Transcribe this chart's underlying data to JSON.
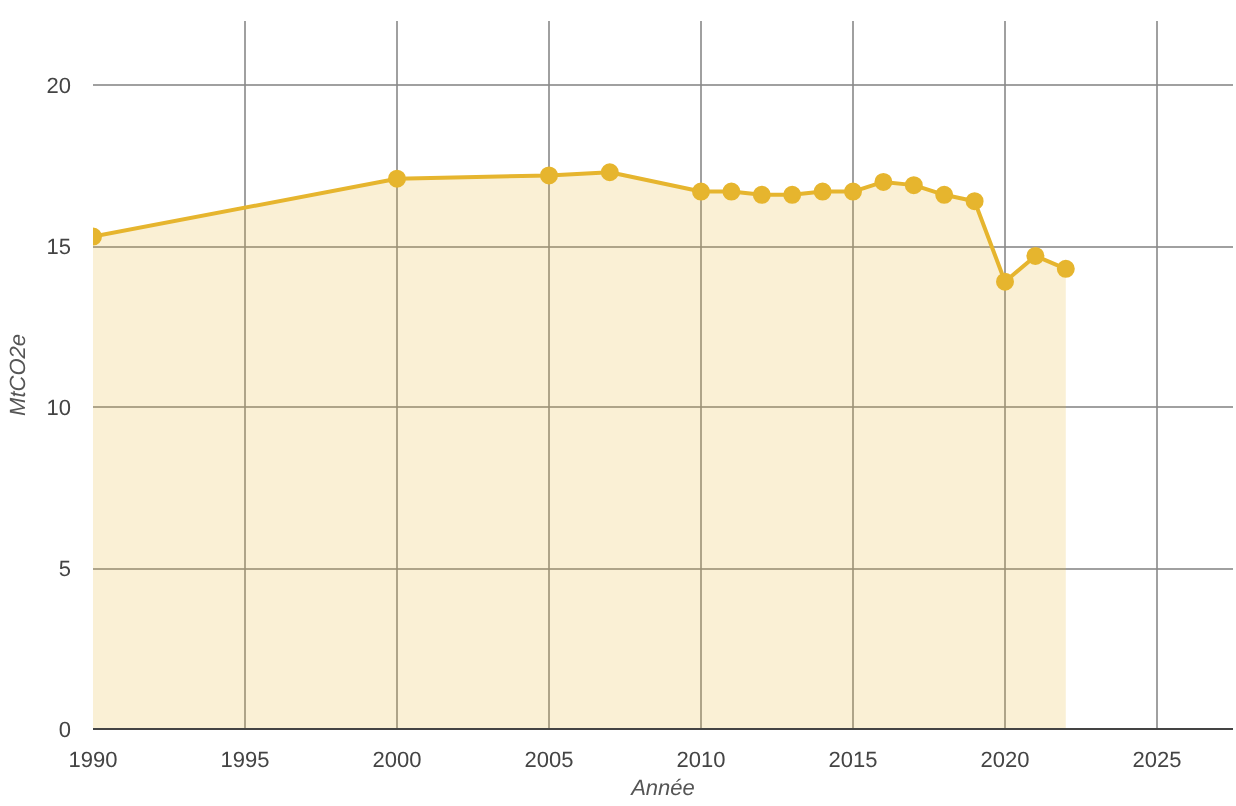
{
  "chart_data": {
    "type": "area",
    "xlabel": "Année",
    "ylabel": "MtCO2e",
    "x": [
      1990,
      2000,
      2005,
      2007,
      2010,
      2011,
      2012,
      2013,
      2014,
      2015,
      2016,
      2017,
      2018,
      2019,
      2020,
      2021,
      2022
    ],
    "series": [
      {
        "color": "#e6b52e",
        "values": [
          15.3,
          17.1,
          17.2,
          17.3,
          16.7,
          16.7,
          16.6,
          16.6,
          16.7,
          16.7,
          17.0,
          16.9,
          16.6,
          16.4,
          13.9,
          14.7,
          14.3
        ]
      }
    ],
    "xlim": [
      1990,
      2027.5
    ],
    "xticks": [
      1990,
      1995,
      2000,
      2005,
      2010,
      2015,
      2020,
      2025
    ],
    "ylim": [
      0,
      22
    ],
    "yticks": [
      0,
      5,
      10,
      15,
      20
    ],
    "grid": true,
    "marker": "circle",
    "line_style": "solid"
  }
}
